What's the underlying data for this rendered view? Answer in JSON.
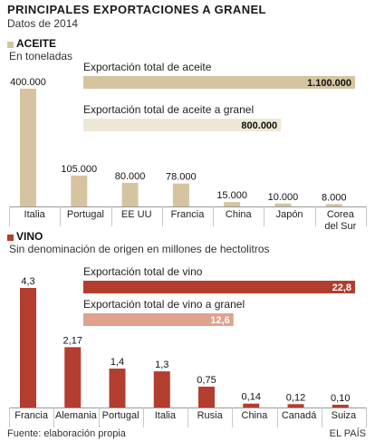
{
  "header": {
    "title": "PRINCIPALES EXPORTACIONES A GRANEL",
    "subtitle": "Datos de 2014"
  },
  "colors": {
    "oil": "#d6c4a0",
    "oil_light": "#efe7d6",
    "wine": "#b33d2f",
    "wine_light": "#dea28f",
    "axis": "#999999"
  },
  "sections": {
    "oil": {
      "heading": "ACEITE",
      "unit": "En toneladas"
    },
    "wine": {
      "heading": "VINO",
      "unit": "Sin denominación de origen en millones de hectolitros"
    }
  },
  "footer": {
    "source": "Fuente: elaboración propia",
    "credit": "EL PAÍS"
  },
  "chart_data": [
    {
      "type": "bar",
      "title": "ACEITE",
      "subtitle": "En toneladas",
      "categories": [
        "Italia",
        "Portugal",
        "EE UU",
        "Francia",
        "China",
        "Japón",
        "Corea del Sur"
      ],
      "values": [
        400000,
        105000,
        80000,
        78000,
        15000,
        10000,
        8000
      ],
      "value_labels": [
        "400.000",
        "105.000",
        "80.000",
        "78.000",
        "15.000",
        "10.000",
        "8.000"
      ],
      "totals": [
        {
          "label": "Exportación total de aceite",
          "value": 1100000,
          "value_label": "1.100.000"
        },
        {
          "label": "Exportación total de aceite a granel",
          "value": 800000,
          "value_label": "800.000"
        }
      ]
    },
    {
      "type": "bar",
      "title": "VINO",
      "subtitle": "Sin denominación de origen en millones de hectolitros",
      "categories": [
        "Francia",
        "Alemania",
        "Portugal",
        "Italia",
        "Rusia",
        "China",
        "Canadá",
        "Suiza"
      ],
      "values": [
        4.3,
        2.17,
        1.4,
        1.3,
        0.75,
        0.14,
        0.12,
        0.1
      ],
      "value_labels": [
        "4,3",
        "2,17",
        "1,4",
        "1,3",
        "0,75",
        "0,14",
        "0,12",
        "0,10"
      ],
      "totals": [
        {
          "label": "Exportación total de vino",
          "value": 22.8,
          "value_label": "22,8"
        },
        {
          "label": "Exportación total de vino a granel",
          "value": 12.6,
          "value_label": "12,6"
        }
      ]
    }
  ]
}
